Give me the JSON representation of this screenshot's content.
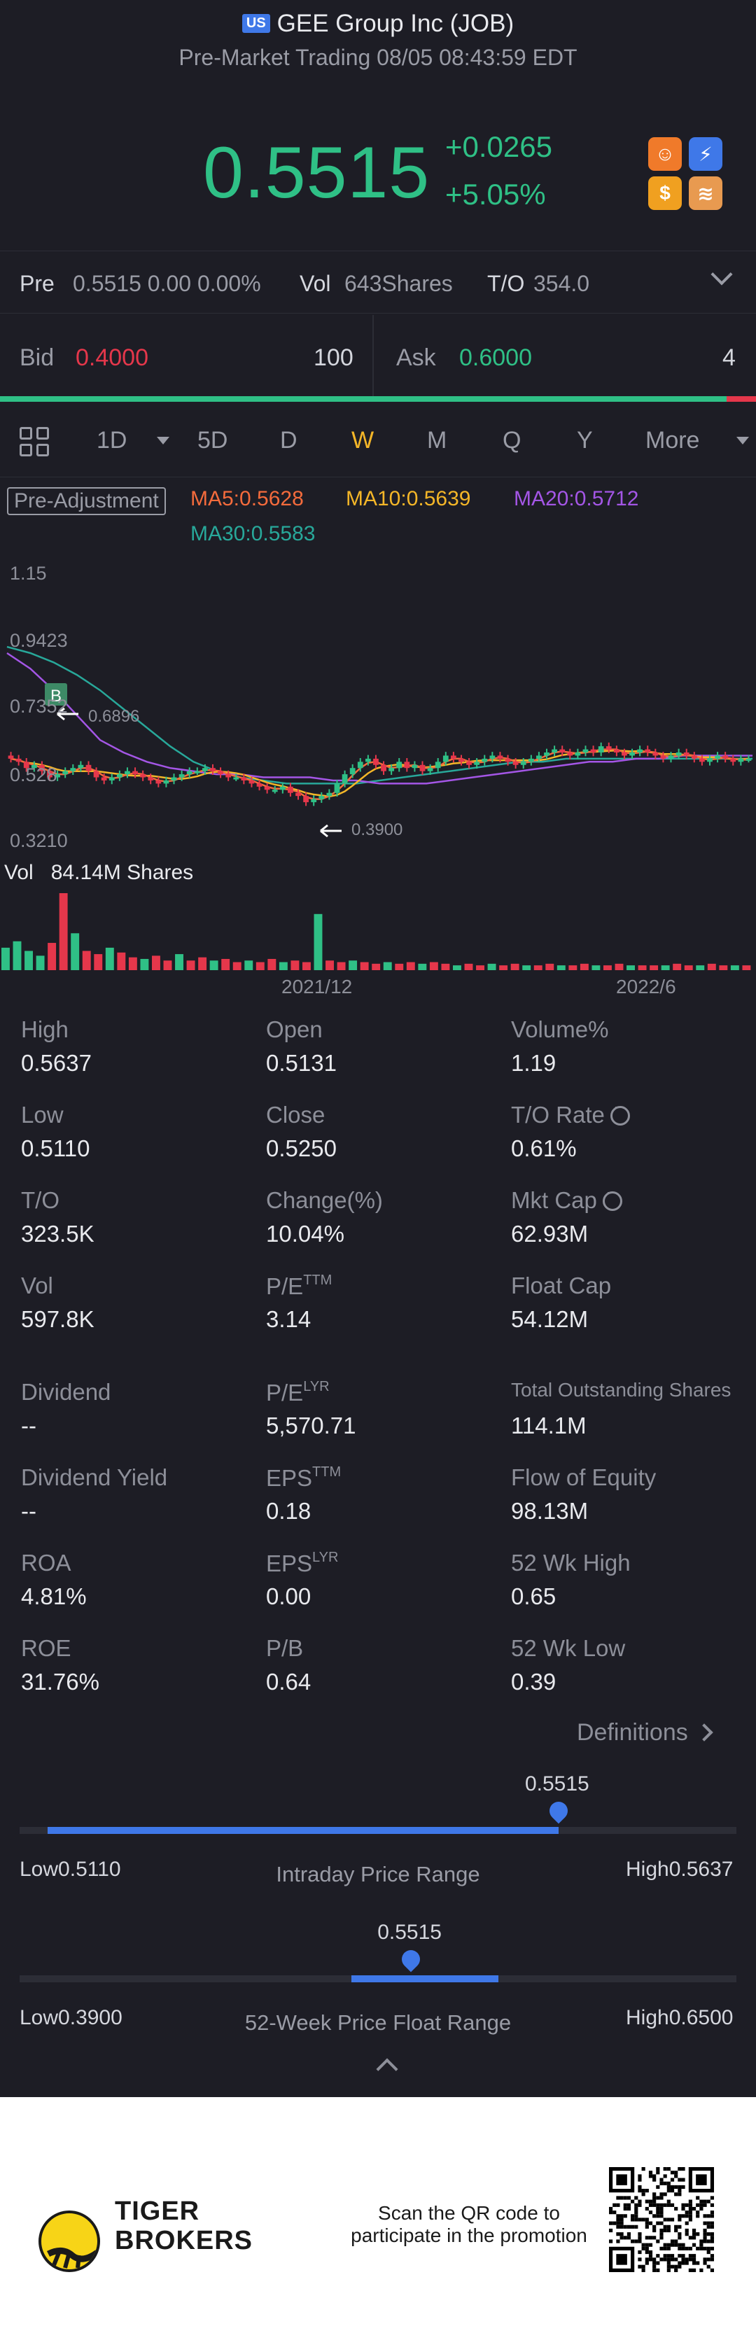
{
  "header": {
    "market_badge": "US",
    "title": "GEE Group Inc (JOB)",
    "subtitle": "Pre-Market Trading 08/05 08:43:59 EDT",
    "price": "0.5515",
    "change": "+0.0265",
    "change_pct": "+5.05%"
  },
  "premarket": {
    "label": "Pre",
    "values": "0.5515 0.00 0.00%",
    "vol_label": "Vol",
    "vol_value": "643Shares",
    "to_label": "T/O",
    "to_value": "354.0"
  },
  "quote": {
    "bid_label": "Bid",
    "bid_price": "0.4000",
    "bid_size": "100",
    "ask_label": "Ask",
    "ask_price": "0.6000",
    "ask_size": "4",
    "bid_share": 0.961
  },
  "tabs": {
    "items": [
      "1D",
      "5D",
      "D",
      "W",
      "M",
      "Q",
      "Y",
      "More"
    ],
    "active": "W"
  },
  "indicators": {
    "adjustment": "Pre-Adjustment",
    "ma5": "MA5:0.5628",
    "ma10": "MA10:0.5639",
    "ma20": "MA20:0.5712",
    "ma30": "MA30:0.5583",
    "colors": {
      "ma5": "#f46b3c",
      "ma10": "#f4b628",
      "ma20": "#a456e6",
      "ma30": "#28a89a",
      "up": "#e5374b",
      "down": "#2fc086",
      "accent": "#3f78e8"
    }
  },
  "chart_data": {
    "type": "candlestick",
    "y_ticks": [
      "1.15",
      "0.9423",
      "0.7352",
      "0.528",
      "0.3210"
    ],
    "ylim": [
      0.321,
      1.15
    ],
    "x_ticks": [
      "2021/12",
      "2022/6"
    ],
    "annotations": {
      "high_marker": "0.6896",
      "low_marker": "0.3900",
      "buy_marker": "B"
    },
    "volume_label": "Vol",
    "volume_value": "84.14M Shares",
    "candles_close": [
      0.56,
      0.55,
      0.53,
      0.54,
      0.52,
      0.5,
      0.51,
      0.52,
      0.53,
      0.54,
      0.52,
      0.5,
      0.49,
      0.5,
      0.51,
      0.52,
      0.51,
      0.5,
      0.49,
      0.48,
      0.49,
      0.5,
      0.51,
      0.52,
      0.52,
      0.53,
      0.52,
      0.51,
      0.5,
      0.5,
      0.49,
      0.48,
      0.47,
      0.46,
      0.46,
      0.47,
      0.45,
      0.44,
      0.42,
      0.43,
      0.44,
      0.45,
      0.48,
      0.51,
      0.53,
      0.55,
      0.56,
      0.54,
      0.52,
      0.53,
      0.55,
      0.53,
      0.54,
      0.52,
      0.53,
      0.55,
      0.57,
      0.56,
      0.55,
      0.54,
      0.55,
      0.56,
      0.57,
      0.56,
      0.55,
      0.54,
      0.55,
      0.56,
      0.57,
      0.58,
      0.59,
      0.58,
      0.57,
      0.58,
      0.59,
      0.58,
      0.6,
      0.59,
      0.58,
      0.57,
      0.58,
      0.59,
      0.58,
      0.57,
      0.56,
      0.57,
      0.58,
      0.57,
      0.56,
      0.55,
      0.56,
      0.57,
      0.56,
      0.55,
      0.56,
      0.56
    ],
    "ma_series": {
      "MA20": [
        0.9,
        0.85,
        0.78,
        0.7,
        0.62,
        0.58,
        0.55,
        0.53,
        0.52,
        0.51,
        0.51,
        0.5,
        0.5,
        0.5,
        0.49,
        0.49,
        0.48,
        0.48,
        0.48,
        0.49,
        0.5,
        0.51,
        0.52,
        0.53,
        0.54,
        0.55,
        0.55,
        0.56,
        0.56,
        0.57,
        0.57,
        0.57,
        0.57
      ],
      "MA30": [
        0.92,
        0.9,
        0.87,
        0.83,
        0.78,
        0.72,
        0.66,
        0.6,
        0.55,
        0.52,
        0.5,
        0.49,
        0.48,
        0.48,
        0.48,
        0.48,
        0.49,
        0.5,
        0.51,
        0.52,
        0.53,
        0.54,
        0.55,
        0.55,
        0.56,
        0.56,
        0.56,
        0.56,
        0.56,
        0.56,
        0.56,
        0.56,
        0.56
      ]
    },
    "volume": [
      28,
      36,
      24,
      18,
      34,
      96,
      46,
      24,
      20,
      28,
      22,
      16,
      14,
      18,
      12,
      20,
      12,
      16,
      12,
      14,
      10,
      12,
      10,
      14,
      10,
      12,
      10,
      70,
      12,
      10,
      12,
      10,
      8,
      10,
      8,
      10,
      8,
      10,
      8,
      6,
      8,
      6,
      8,
      6,
      8,
      6,
      6,
      8,
      6,
      6,
      8,
      6,
      6,
      8,
      6,
      6,
      6,
      6,
      8,
      6,
      6,
      8,
      6,
      6,
      6
    ]
  },
  "stats": [
    {
      "label": "High",
      "value": "0.5637"
    },
    {
      "label": "Open",
      "value": "0.5131"
    },
    {
      "label": "Volume%",
      "value": "1.19"
    },
    {
      "label": "Low",
      "value": "0.5110"
    },
    {
      "label": "Close",
      "value": "0.5250"
    },
    {
      "label": "T/O Rate",
      "value": "0.61%"
    },
    {
      "label": "T/O",
      "value": "323.5K"
    },
    {
      "label": "Change(%)",
      "value": "10.04%"
    },
    {
      "label": "Mkt Cap",
      "value": "62.93M"
    },
    {
      "label": "Vol",
      "value": "597.8K"
    },
    {
      "label": "P/E",
      "sup": "TTM",
      "value": "3.14"
    },
    {
      "label": "Float Cap",
      "value": "54.12M"
    },
    {
      "label": "Dividend",
      "value": "--"
    },
    {
      "label": "P/E",
      "sup": "LYR",
      "value": "5,570.71"
    },
    {
      "label": "Total Outstanding Shares",
      "value": "114.1M"
    },
    {
      "label": "Dividend Yield",
      "value": "--"
    },
    {
      "label": "EPS",
      "sup": "TTM",
      "value": "0.18"
    },
    {
      "label": "Flow of Equity",
      "value": "98.13M"
    },
    {
      "label": "ROA",
      "value": "4.81%"
    },
    {
      "label": "EPS",
      "sup": "LYR",
      "value": "0.00"
    },
    {
      "label": "52 Wk High",
      "value": "0.65"
    },
    {
      "label": "ROE",
      "value": "31.76%"
    },
    {
      "label": "P/B",
      "value": "0.64"
    },
    {
      "label": "52 Wk Low",
      "value": "0.39"
    }
  ],
  "definitions_label": "Definitions",
  "intraday_range": {
    "title": "Intraday Price Range",
    "low_label": "Low",
    "low": "0.5110",
    "high_label": "High",
    "high": "0.5637",
    "current": "0.5515",
    "current_fraction": 0.77
  },
  "week52_range": {
    "title": "52-Week Price Float Range",
    "low_label": "Low",
    "low": "0.3900",
    "high_label": "High",
    "high": "0.6500",
    "current": "0.5515",
    "current_fraction": 0.62
  },
  "footer": {
    "brand_line1": "TIGER",
    "brand_line2": "BROKERS",
    "promo_line1": "Scan the QR code to",
    "promo_line2": "participate in the promotion"
  }
}
